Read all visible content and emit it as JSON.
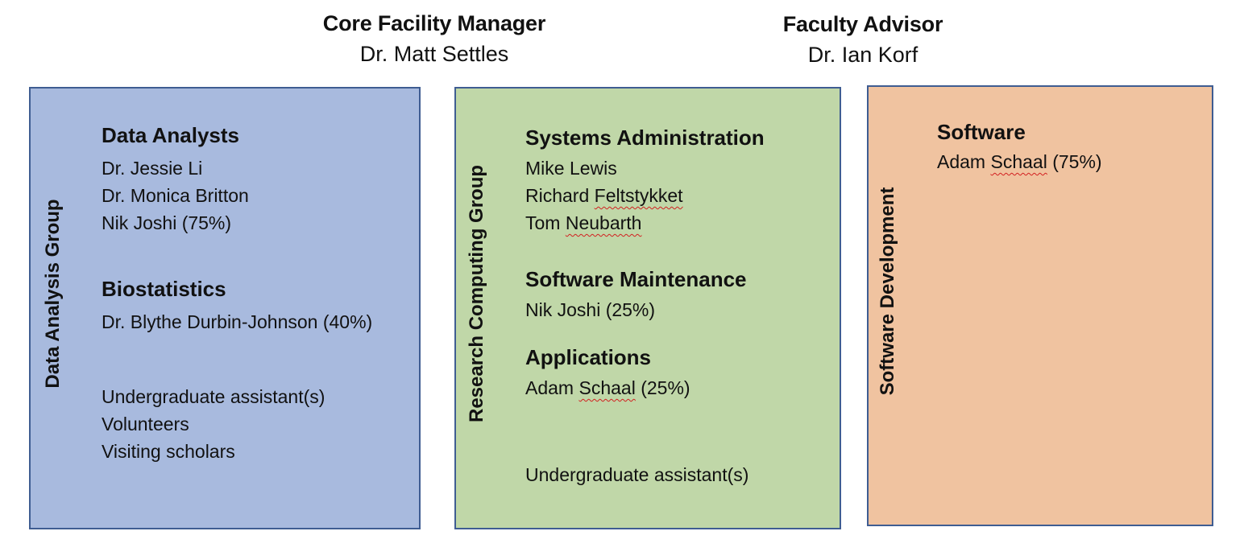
{
  "leaders": {
    "manager": {
      "role": "Core Facility Manager",
      "name": "Dr. Matt Settles"
    },
    "advisor": {
      "role": "Faculty Advisor",
      "name": "Dr. Ian Korf"
    }
  },
  "groups": {
    "analysis": {
      "label": "Data Analysis Group",
      "color": "#a8bade",
      "sections": {
        "analysts": {
          "title": "Data Analysts",
          "members": [
            "Dr. Jessie Li",
            "Dr. Monica Britton",
            "Nik Joshi (75%)"
          ]
        },
        "biostatistics": {
          "title": "Biostatistics",
          "members": [
            "Dr. Blythe Durbin-Johnson (40%)"
          ]
        },
        "other": {
          "members": [
            "Undergraduate assistant(s)",
            "Volunteers",
            "Visiting scholars"
          ]
        }
      }
    },
    "computing": {
      "label": "Research Computing Group",
      "color": "#c0d7a8",
      "sections": {
        "sysadmin": {
          "title": "Systems Administration",
          "members": [
            "Mike Lewis",
            "Richard",
            "Feltstykket",
            "Tom",
            "Neubarth"
          ]
        },
        "maintenance": {
          "title": "Software Maintenance",
          "members": [
            "Nik Joshi (25%)"
          ]
        },
        "applications": {
          "title": "Applications",
          "members": [
            "Adam",
            "Schaal",
            "(25%)"
          ]
        },
        "other": {
          "members": [
            "Undergraduate assistant(s)"
          ]
        }
      }
    },
    "software": {
      "label": "Software Development",
      "color": "#f0c3a0",
      "sections": {
        "software": {
          "title": "Software",
          "members": [
            "Adam",
            "Schaal",
            "(75%)"
          ]
        }
      }
    }
  }
}
